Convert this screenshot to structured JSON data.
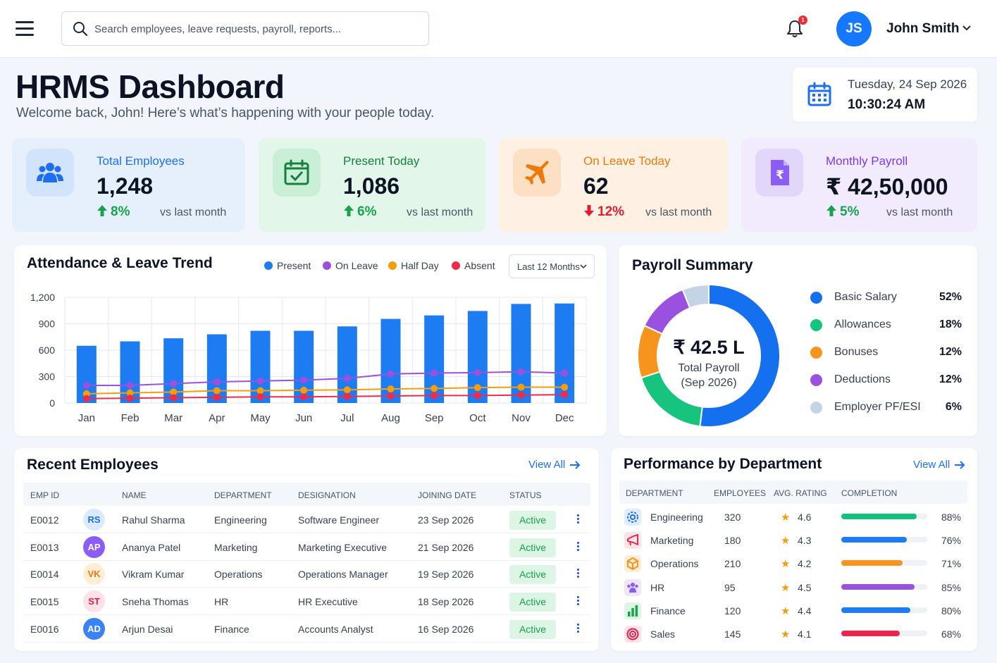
{
  "topbar": {
    "search_placeholder": "Search employees, leave requests, payroll, reports...",
    "notification_count": "1",
    "user_initials": "JS",
    "user_name": "John Smith"
  },
  "header": {
    "title": "HRMS Dashboard",
    "subtitle": "Welcome back, John! Here’s what’s happening with your people today.",
    "date": "Tuesday, 24 Sep 2026",
    "time": "10:30:24 AM"
  },
  "stats": [
    {
      "label": "Total Employees",
      "value": "1,248",
      "change": "8%",
      "direction": "up",
      "vs": "vs last month",
      "color": "#1d6ff2"
    },
    {
      "label": "Present Today",
      "value": "1,086",
      "change": "6%",
      "direction": "up",
      "vs": "vs last month",
      "color": "#15803d"
    },
    {
      "label": "On Leave Today",
      "value": "62",
      "change": "12%",
      "direction": "down",
      "vs": "vs last month",
      "color": "#ea7a0c"
    },
    {
      "label": "Monthly Payroll",
      "value": "₹ 42,50,000",
      "change": "5%",
      "direction": "up",
      "vs": "vs last month",
      "color": "#7c3aed"
    }
  ],
  "attendance": {
    "title": "Attendance & Leave Trend",
    "range_label": "Last 12 Months",
    "legend": [
      {
        "name": "Present",
        "color": "#1e7cf2"
      },
      {
        "name": "On Leave",
        "color": "#9b51e0"
      },
      {
        "name": "Half Day",
        "color": "#f59e0b"
      },
      {
        "name": "Absent",
        "color": "#ef2b4a"
      }
    ]
  },
  "chart_data": [
    {
      "type": "bar",
      "title": "Attendance & Leave Trend",
      "categories": [
        "Jan",
        "Feb",
        "Mar",
        "Apr",
        "May",
        "Jun",
        "Jul",
        "Aug",
        "Sep",
        "Oct",
        "Nov",
        "Dec"
      ],
      "ylim": [
        0,
        1200
      ],
      "yticks": [
        "1,200",
        "900",
        "600",
        "300",
        "0"
      ],
      "grid": true,
      "legend_position": "top",
      "series": [
        {
          "name": "Present",
          "kind": "bar",
          "color": "#1e7cf2",
          "values": [
            650,
            700,
            735,
            780,
            820,
            820,
            870,
            955,
            995,
            1045,
            1125,
            1130
          ]
        },
        {
          "name": "On Leave",
          "kind": "line",
          "color": "#9b51e0",
          "values": [
            200,
            200,
            220,
            240,
            250,
            260,
            280,
            330,
            340,
            345,
            355,
            340
          ]
        },
        {
          "name": "Half Day",
          "kind": "line",
          "color": "#f59e0b",
          "values": [
            105,
            115,
            125,
            140,
            140,
            145,
            150,
            160,
            165,
            175,
            180,
            180
          ]
        },
        {
          "name": "Absent",
          "kind": "line",
          "color": "#ef2b4a",
          "values": [
            50,
            55,
            60,
            65,
            70,
            70,
            75,
            80,
            85,
            85,
            90,
            95
          ]
        }
      ]
    },
    {
      "type": "pie",
      "title": "Payroll Summary",
      "center_value": "₹ 42.5 L",
      "center_label": "Total Payroll",
      "center_sub": "(Sep 2026)",
      "slices": [
        {
          "name": "Basic Salary",
          "value": 52,
          "label": "52%",
          "color": "#1570ef"
        },
        {
          "name": "Allowances",
          "value": 18,
          "label": "18%",
          "color": "#16c47f"
        },
        {
          "name": "Bonuses",
          "value": 12,
          "label": "12%",
          "color": "#f7941d"
        },
        {
          "name": "Deductions",
          "value": 12,
          "label": "12%",
          "color": "#9b51e0"
        },
        {
          "name": "Employer PF/ESI",
          "value": 6,
          "label": "6%",
          "color": "#c5d3e6"
        }
      ]
    }
  ],
  "payroll": {
    "title": "Payroll Summary"
  },
  "recent": {
    "title": "Recent Employees",
    "view_all": "View All",
    "headers": [
      "EMP ID",
      "NAME",
      "DEPARTMENT",
      "DESIGNATION",
      "JOINING DATE",
      "STATUS"
    ],
    "rows": [
      {
        "id": "E0012",
        "initials": "RS",
        "name": "Rahul Sharma",
        "dept": "Engineering",
        "designation": "Software Engineer",
        "joined": "23 Sep 2026",
        "status": "Active",
        "av_bg": "#dbeafe",
        "av_fg": "#1d6ff2"
      },
      {
        "id": "E0013",
        "initials": "AP",
        "name": "Ananya Patel",
        "dept": "Marketing",
        "designation": "Marketing Executive",
        "joined": "21 Sep 2026",
        "status": "Active",
        "av_bg": "#8b5cf6",
        "av_fg": "#ffffff"
      },
      {
        "id": "E0014",
        "initials": "VK",
        "name": "Vikram Kumar",
        "dept": "Operations",
        "designation": "Operations Manager",
        "joined": "19 Sep 2026",
        "status": "Active",
        "av_bg": "#ffedd5",
        "av_fg": "#ea7a0c"
      },
      {
        "id": "E0015",
        "initials": "ST",
        "name": "Sneha Thomas",
        "dept": "HR",
        "designation": "HR Executive",
        "joined": "18 Sep 2026",
        "status": "Active",
        "av_bg": "#fde2e8",
        "av_fg": "#e11d48"
      },
      {
        "id": "E0016",
        "initials": "AD",
        "name": "Arjun Desai",
        "dept": "Finance",
        "designation": "Accounts Analyst",
        "joined": "16 Sep 2026",
        "status": "Active",
        "av_bg": "#3b82f6",
        "av_fg": "#ffffff"
      }
    ]
  },
  "performance": {
    "title": "Performance by Department",
    "view_all": "View All",
    "headers": [
      "DEPARTMENT",
      "EMPLOYEES",
      "AVG. RATING",
      "COMPLETION"
    ],
    "rows": [
      {
        "dept": "Engineering",
        "icon": "gear-icon",
        "employees": "320",
        "rating": "4.6",
        "completion": 88,
        "completion_label": "88%",
        "color": "#10c27a",
        "icon_bg": "#e0ecff",
        "icon_fg": "#1d6ff2"
      },
      {
        "dept": "Marketing",
        "icon": "megaphone-icon",
        "employees": "180",
        "rating": "4.3",
        "completion": 76,
        "completion_label": "76%",
        "color": "#1e7cf2",
        "icon_bg": "#fde2e8",
        "icon_fg": "#e11d48"
      },
      {
        "dept": "Operations",
        "icon": "cube-icon",
        "employees": "210",
        "rating": "4.2",
        "completion": 71,
        "completion_label": "71%",
        "color": "#f7941d",
        "icon_bg": "#ffedd5",
        "icon_fg": "#f7941d"
      },
      {
        "dept": "HR",
        "icon": "people-icon",
        "employees": "95",
        "rating": "4.5",
        "completion": 85,
        "completion_label": "85%",
        "color": "#9b51e0",
        "icon_bg": "#efe5fd",
        "icon_fg": "#8b5cf6"
      },
      {
        "dept": "Finance",
        "icon": "bar-chart-icon",
        "employees": "120",
        "rating": "4.4",
        "completion": 80,
        "completion_label": "80%",
        "color": "#1e7cf2",
        "icon_bg": "#dcf5e4",
        "icon_fg": "#16a34a"
      },
      {
        "dept": "Sales",
        "icon": "target-icon",
        "employees": "145",
        "rating": "4.1",
        "completion": 68,
        "completion_label": "68%",
        "color": "#f0234e",
        "icon_bg": "#fde2e8",
        "icon_fg": "#e11d48"
      }
    ]
  }
}
